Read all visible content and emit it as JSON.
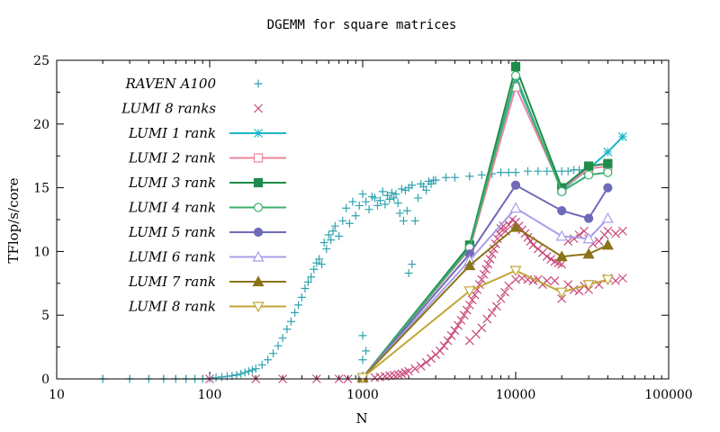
{
  "chart_data": {
    "type": "scatter",
    "title": "DGEMM for square matrices",
    "xlabel": "N",
    "ylabel": "TFlop/s/core",
    "xscale": "log",
    "xlim": [
      10,
      100000
    ],
    "ylim": [
      0,
      25
    ],
    "xticks": [
      10,
      100,
      1000,
      10000,
      100000
    ],
    "xtick_labels": [
      "10",
      "100",
      "1000",
      "10000",
      "100000"
    ],
    "yticks": [
      0,
      5,
      10,
      15,
      20,
      25
    ],
    "ytick_labels": [
      "0",
      "5",
      "10",
      "15",
      "20",
      "25"
    ],
    "grid": false,
    "legend_position": "top-left",
    "series": [
      {
        "name": "RAVEN A100",
        "color": "#2ea3b0",
        "marker": "plus",
        "style": "points",
        "x": [
          20,
          30,
          40,
          50,
          60,
          70,
          80,
          90,
          100,
          110,
          120,
          130,
          140,
          150,
          160,
          170,
          180,
          190,
          200,
          220,
          240,
          260,
          280,
          300,
          320,
          340,
          360,
          380,
          400,
          420,
          440,
          460,
          480,
          500,
          520,
          540,
          560,
          580,
          600,
          620,
          640,
          660,
          700,
          740,
          780,
          820,
          860,
          900,
          950,
          1000,
          1050,
          1100,
          1150,
          1200,
          1250,
          1300,
          1350,
          1400,
          1450,
          1500,
          1550,
          1600,
          1650,
          1700,
          1750,
          1800,
          1850,
          1900,
          1950,
          2000,
          2100,
          2200,
          2300,
          2400,
          2500,
          2600,
          2700,
          2800,
          2900,
          3000,
          3500,
          4000,
          5000,
          6000,
          7000,
          8000,
          9000,
          10000,
          12000,
          14000,
          16000,
          18000,
          20000,
          22000,
          24000,
          26000,
          28000,
          30000,
          1000,
          1000,
          1050,
          2000,
          2100
        ],
        "y": [
          0,
          0,
          0,
          0,
          0,
          0,
          0,
          0,
          0.05,
          0.1,
          0.15,
          0.2,
          0.25,
          0.3,
          0.4,
          0.5,
          0.6,
          0.7,
          0.8,
          1.1,
          1.5,
          2.0,
          2.6,
          3.2,
          3.9,
          4.5,
          5.2,
          5.8,
          6.4,
          7.1,
          7.6,
          8.0,
          8.6,
          9.1,
          9.4,
          9.0,
          10.7,
          10.2,
          11.3,
          10.9,
          11.6,
          12.0,
          11.2,
          12.4,
          13.4,
          12.2,
          13.9,
          12.8,
          13.6,
          14.5,
          13.9,
          13.3,
          14.3,
          14.2,
          13.6,
          14.0,
          14.7,
          13.7,
          14.4,
          14.1,
          14.6,
          14.2,
          14.5,
          13.8,
          13.0,
          14.9,
          12.4,
          14.8,
          13.2,
          15.0,
          15.2,
          12.4,
          14.2,
          15.3,
          15.1,
          14.8,
          15.5,
          15.3,
          15.6,
          15.6,
          15.8,
          15.8,
          15.9,
          16.0,
          16.1,
          16.2,
          16.2,
          16.2,
          16.3,
          16.3,
          16.3,
          16.3,
          16.3,
          16.3,
          16.4,
          16.4,
          16.3,
          16.4,
          1.5,
          3.4,
          2.2,
          8.3,
          9.0
        ]
      },
      {
        "name": "LUMI 8 ranks",
        "color": "#c8487b",
        "marker": "x",
        "style": "points",
        "x": [
          100,
          200,
          300,
          500,
          700,
          800,
          1000,
          1200,
          1300,
          1400,
          1500,
          1600,
          1700,
          1800,
          1900,
          2000,
          2200,
          2400,
          2600,
          2800,
          3000,
          3200,
          3400,
          3600,
          3800,
          4000,
          4200,
          4400,
          4600,
          4800,
          5000,
          5200,
          5400,
          5600,
          5800,
          6000,
          6200,
          6400,
          6600,
          6800,
          7000,
          7200,
          7400,
          7600,
          7800,
          8000,
          8300,
          8600,
          9000,
          9500,
          10000,
          10500,
          11000,
          11500,
          12000,
          12500,
          13000,
          14000,
          15000,
          16000,
          17000,
          18000,
          19000,
          20000,
          22000,
          24000,
          26000,
          28000,
          30000,
          32000,
          35000,
          38000,
          40000,
          45000,
          50000,
          5000,
          5500,
          6000,
          6500,
          7000,
          7500,
          8000,
          8500,
          9000,
          10000,
          11000,
          12000,
          13000,
          14000,
          15000,
          16000,
          18000,
          20000,
          22000,
          24000,
          26000,
          28000,
          30000,
          35000,
          40000,
          45000,
          50000
        ],
        "y": [
          0,
          0,
          0,
          0,
          0,
          0,
          0,
          0.1,
          0.15,
          0.2,
          0.25,
          0.3,
          0.35,
          0.4,
          0.5,
          0.6,
          0.8,
          1.0,
          1.3,
          1.6,
          1.9,
          2.2,
          2.6,
          3.0,
          3.4,
          3.8,
          4.2,
          4.6,
          5.0,
          5.4,
          5.8,
          6.2,
          6.6,
          7.0,
          7.4,
          7.8,
          8.2,
          8.6,
          9.0,
          9.4,
          9.8,
          10.2,
          10.6,
          11.0,
          11.4,
          11.8,
          12.0,
          11.6,
          12.1,
          12.5,
          12.3,
          12.0,
          11.7,
          11.4,
          11.1,
          10.8,
          10.5,
          10.2,
          9.9,
          9.6,
          9.4,
          9.2,
          9.1,
          9.0,
          10.8,
          11.0,
          11.3,
          11.6,
          11.0,
          10.6,
          10.8,
          11.3,
          11.6,
          11.4,
          11.6,
          3.0,
          3.5,
          4.0,
          4.7,
          5.2,
          5.7,
          6.3,
          6.8,
          7.3,
          7.8,
          7.9,
          7.8,
          7.7,
          7.8,
          7.4,
          7.7,
          7.7,
          6.3,
          7.4,
          7.0,
          6.9,
          7.3,
          7.0,
          7.4,
          7.9,
          7.7,
          7.9
        ]
      },
      {
        "name": "LUMI 1 rank",
        "color": "#1ab6c8",
        "marker": "asterisk",
        "style": "linespoints",
        "x": [
          1000,
          5000,
          10000,
          20000,
          30000,
          40000,
          50000
        ],
        "y": [
          0.1,
          10.5,
          23.5,
          14.8,
          16.5,
          17.8,
          19.0
        ]
      },
      {
        "name": "LUMI 2 rank",
        "color": "#e8879c",
        "marker": "square-open",
        "style": "linespoints",
        "x": [
          1000,
          5000,
          10000,
          20000,
          30000,
          40000
        ],
        "y": [
          0.1,
          10.2,
          22.9,
          14.9,
          16.5,
          16.7
        ]
      },
      {
        "name": "LUMI 3 rank",
        "color": "#1e8c4b",
        "marker": "square-filled",
        "style": "linespoints",
        "x": [
          1000,
          5000,
          10000,
          20000,
          30000,
          40000
        ],
        "y": [
          0.1,
          10.5,
          24.5,
          15.0,
          16.7,
          16.9
        ]
      },
      {
        "name": "LUMI 4 rank",
        "color": "#3fae6e",
        "marker": "circle-open",
        "style": "linespoints",
        "x": [
          1000,
          5000,
          10000,
          20000,
          30000,
          40000
        ],
        "y": [
          0.1,
          10.3,
          23.8,
          14.7,
          16.0,
          16.2
        ]
      },
      {
        "name": "LUMI 5 rank",
        "color": "#6f6ab8",
        "marker": "circle-filled",
        "style": "linespoints",
        "x": [
          1000,
          5000,
          10000,
          20000,
          30000,
          40000
        ],
        "y": [
          0.1,
          9.8,
          15.2,
          13.2,
          12.6,
          15.0
        ]
      },
      {
        "name": "LUMI 6 rank",
        "color": "#a99ee8",
        "marker": "triangle-open",
        "style": "linespoints",
        "x": [
          1000,
          5000,
          10000,
          20000,
          30000,
          40000
        ],
        "y": [
          0.1,
          9.3,
          13.4,
          11.2,
          11.0,
          12.6
        ]
      },
      {
        "name": "LUMI 7 rank",
        "color": "#8a7418",
        "marker": "triangle-filled",
        "style": "linespoints",
        "x": [
          1000,
          5000,
          10000,
          20000,
          30000,
          40000
        ],
        "y": [
          0.1,
          8.9,
          11.9,
          9.6,
          9.8,
          10.5
        ]
      },
      {
        "name": "LUMI 8 rank",
        "color": "#c2a637",
        "marker": "triangle-down-open",
        "style": "linespoints",
        "x": [
          1000,
          5000,
          10000,
          20000,
          30000,
          40000
        ],
        "y": [
          0.1,
          6.9,
          8.5,
          6.8,
          7.4,
          7.8
        ]
      }
    ]
  }
}
